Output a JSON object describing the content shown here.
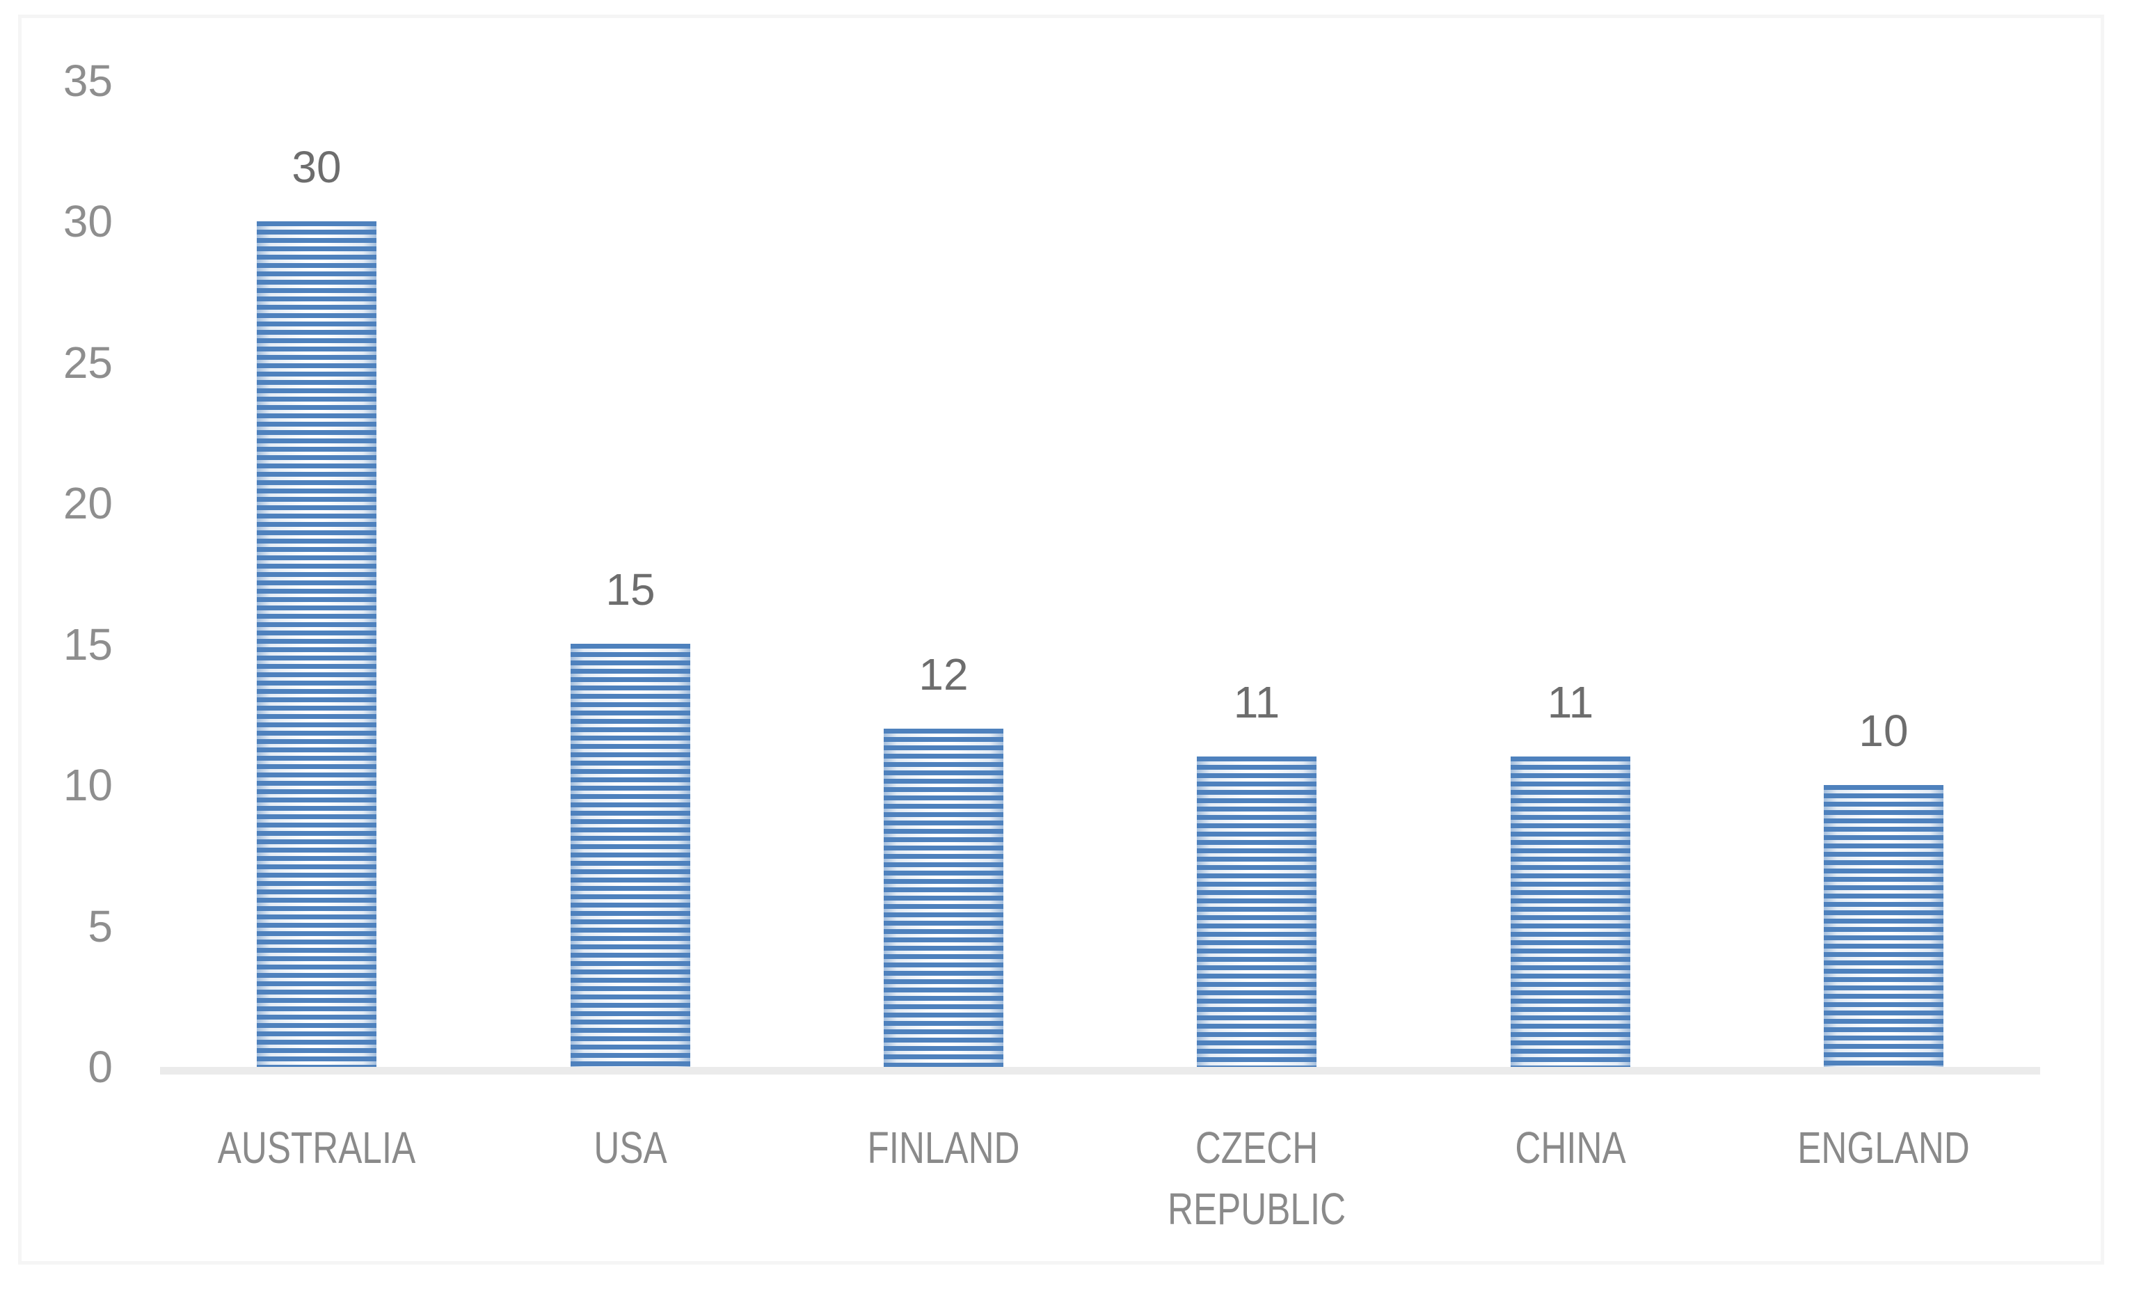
{
  "chart_data": {
    "type": "bar",
    "title": "",
    "xlabel": "",
    "ylabel": "",
    "categories": [
      "AUSTRALIA",
      "USA",
      "FINLAND",
      "CZECH REPUBLIC",
      "CHINA",
      "ENGLAND"
    ],
    "category_display": [
      "AUSTRALIA",
      "USA",
      "FINLAND",
      "CZECH\nREPUBLIC",
      "CHINA",
      "ENGLAND"
    ],
    "values": [
      30,
      15,
      12,
      11,
      11,
      10
    ],
    "data_labels": [
      "30",
      "15",
      "12",
      "11",
      "11",
      "10"
    ],
    "ylim": [
      0,
      35
    ],
    "yticks": [
      "0",
      "5",
      "10",
      "15",
      "20",
      "25",
      "30",
      "35"
    ],
    "grid": false,
    "legend": "none",
    "colors": {
      "stripe": "#4e81bd",
      "bar_edge_tint": "#a3bedd",
      "bar_fill_center": "#ffffff",
      "baseline": "#ebebeb",
      "frame_border": "#f5f5f5",
      "tick_label": "#8e8e8e",
      "data_label": "#6d6d6d",
      "category_label": "#8a8a8a"
    }
  }
}
